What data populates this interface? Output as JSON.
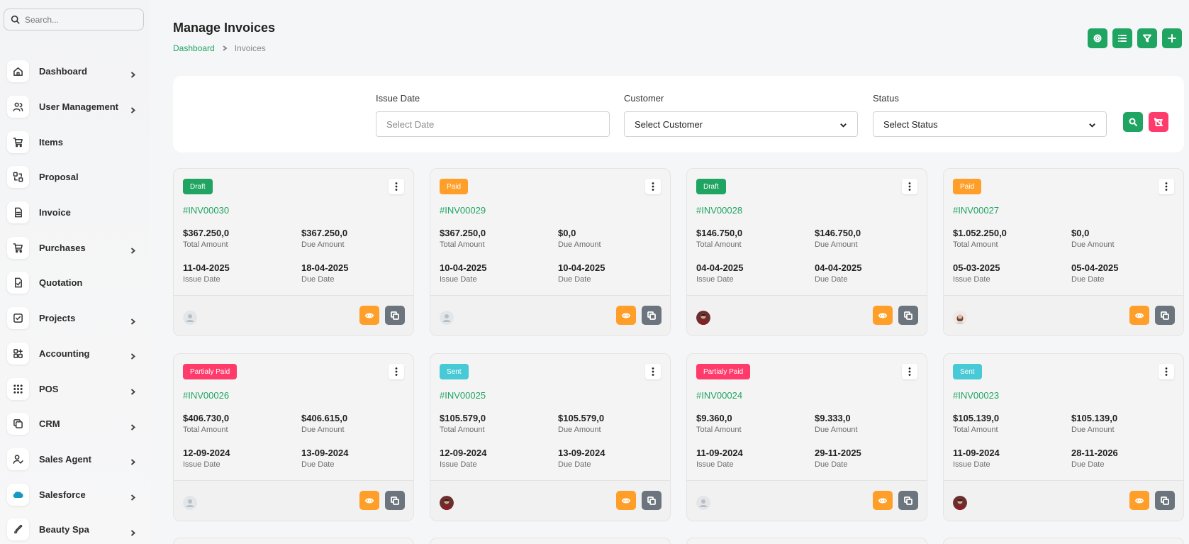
{
  "search": {
    "placeholder": "Search..."
  },
  "sidebar": {
    "items": [
      {
        "label": "Dashboard",
        "icon": "home-icon",
        "chevron": true
      },
      {
        "label": "User Management",
        "icon": "users-icon",
        "chevron": true
      },
      {
        "label": "Items",
        "icon": "cart-icon",
        "chevron": false
      },
      {
        "label": "Proposal",
        "icon": "proposal-icon",
        "chevron": false
      },
      {
        "label": "Invoice",
        "icon": "file-icon",
        "chevron": false
      },
      {
        "label": "Purchases",
        "icon": "cart-icon",
        "chevron": true
      },
      {
        "label": "Quotation",
        "icon": "file-check-icon",
        "chevron": false
      },
      {
        "label": "Projects",
        "icon": "checkbox-icon",
        "chevron": true
      },
      {
        "label": "Accounting",
        "icon": "apps-icon",
        "chevron": true
      },
      {
        "label": "POS",
        "icon": "grid-dots-icon",
        "chevron": true
      },
      {
        "label": "CRM",
        "icon": "layers-icon",
        "chevron": true
      },
      {
        "label": "Sales Agent",
        "icon": "user-check-icon",
        "chevron": true
      },
      {
        "label": "Salesforce",
        "icon": "salesforce-cloud-icon",
        "chevron": true
      },
      {
        "label": "Beauty Spa",
        "icon": "brush-icon",
        "chevron": true
      }
    ]
  },
  "header": {
    "title": "Manage Invoices",
    "breadcrumb": {
      "home": "Dashboard",
      "current": "Invoices"
    },
    "actions": [
      "settings-icon",
      "list-icon",
      "filter-icon",
      "plus-icon"
    ]
  },
  "filters": {
    "issue_date": {
      "label": "Issue Date",
      "placeholder": "Select Date"
    },
    "customer": {
      "label": "Customer",
      "value": "Select Customer"
    },
    "status": {
      "label": "Status",
      "value": "Select Status"
    }
  },
  "labels": {
    "total_amount": "Total Amount",
    "due_amount": "Due Amount",
    "issue_date": "Issue Date",
    "due_date": "Due Date"
  },
  "colors": {
    "accent": "#1fa462",
    "draft": "#1fa462",
    "paid": "#ff9f29",
    "partially_paid": "#ff3b6b",
    "sent": "#48c9d6",
    "view_button": "#ff9f29",
    "copy_button": "#6c757d",
    "reset_button": "#ff3b6b"
  },
  "invoices": [
    {
      "status": "Draft",
      "status_key": "draft",
      "number": "#INV00030",
      "total": "$367.250,0",
      "due": "$367.250,0",
      "issue_date": "11-04-2025",
      "due_date": "18-04-2025",
      "avatar": "placeholder"
    },
    {
      "status": "Paid",
      "status_key": "paid",
      "number": "#INV00029",
      "total": "$367.250,0",
      "due": "$0,0",
      "issue_date": "10-04-2025",
      "due_date": "10-04-2025",
      "avatar": "placeholder"
    },
    {
      "status": "Draft",
      "status_key": "draft",
      "number": "#INV00028",
      "total": "$146.750,0",
      "due": "$146.750,0",
      "issue_date": "04-04-2025",
      "due_date": "04-04-2025",
      "avatar": "photo-man"
    },
    {
      "status": "Paid",
      "status_key": "paid",
      "number": "#INV00027",
      "total": "$1.052.250,0",
      "due": "$0,0",
      "issue_date": "05-03-2025",
      "due_date": "05-04-2025",
      "avatar": "photo-woman"
    },
    {
      "status": "Partialy Paid",
      "status_key": "partially_paid",
      "number": "#INV00026",
      "total": "$406.730,0",
      "due": "$406.615,0",
      "issue_date": "12-09-2024",
      "due_date": "13-09-2024",
      "avatar": "placeholder"
    },
    {
      "status": "Sent",
      "status_key": "sent",
      "number": "#INV00025",
      "total": "$105.579,0",
      "due": "$105.579,0",
      "issue_date": "12-09-2024",
      "due_date": "13-09-2024",
      "avatar": "photo-man"
    },
    {
      "status": "Partialy Paid",
      "status_key": "partially_paid",
      "number": "#INV00024",
      "total": "$9.360,0",
      "due": "$9.333,0",
      "issue_date": "11-09-2024",
      "due_date": "29-11-2025",
      "avatar": "placeholder"
    },
    {
      "status": "Sent",
      "status_key": "sent",
      "number": "#INV00023",
      "total": "$105.139,0",
      "due": "$105.139,0",
      "issue_date": "11-09-2024",
      "due_date": "28-11-2026",
      "avatar": "photo-man"
    }
  ]
}
